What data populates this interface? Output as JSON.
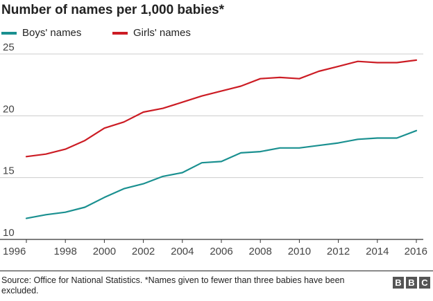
{
  "title": "Number of names per 1,000 babies*",
  "source": "Source: Office for National Statistics. *Names given to fewer than three babies have been excluded.",
  "logo_text": "BBC",
  "colors": {
    "boys": "#1a9090",
    "girls": "#cc1c24",
    "grid": "#cccccc",
    "axis": "#333333",
    "text": "#444444"
  },
  "chart_data": {
    "type": "line",
    "title": "Number of names per 1,000 babies*",
    "xlabel": "",
    "ylabel": "",
    "x": [
      1996,
      1997,
      1998,
      1999,
      2000,
      2001,
      2002,
      2003,
      2004,
      2005,
      2006,
      2007,
      2008,
      2009,
      2010,
      2011,
      2012,
      2013,
      2014,
      2015,
      2016
    ],
    "xlim": [
      1996,
      2016
    ],
    "ylim": [
      10,
      25
    ],
    "x_ticks": [
      1996,
      1998,
      2000,
      2002,
      2004,
      2006,
      2008,
      2010,
      2012,
      2014,
      2016
    ],
    "y_ticks": [
      10,
      15,
      20,
      25
    ],
    "grid": "horizontal",
    "legend_position": "top-left",
    "series": [
      {
        "name": "Boys' names",
        "color": "#1a9090",
        "values": [
          11.7,
          12.0,
          12.2,
          12.6,
          13.4,
          14.1,
          14.5,
          15.1,
          15.4,
          16.2,
          16.3,
          17.0,
          17.1,
          17.4,
          17.4,
          17.6,
          17.8,
          18.1,
          18.2,
          18.2,
          18.8
        ]
      },
      {
        "name": "Girls' names",
        "color": "#cc1c24",
        "values": [
          16.7,
          16.9,
          17.3,
          18.0,
          19.0,
          19.5,
          20.3,
          20.6,
          21.1,
          21.6,
          22.0,
          22.4,
          23.0,
          23.1,
          23.0,
          23.6,
          24.0,
          24.4,
          24.3,
          24.3,
          24.5
        ]
      }
    ]
  }
}
